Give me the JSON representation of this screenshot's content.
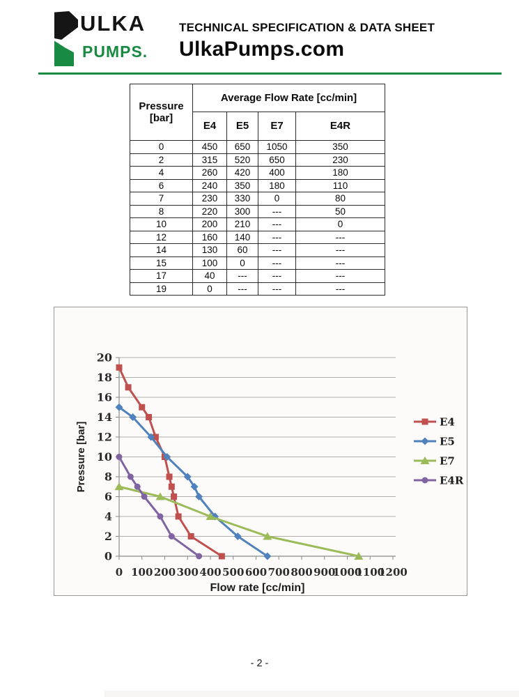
{
  "header": {
    "logo_word_top": "ULKA",
    "logo_word_bottom": "PUMPS.",
    "brand_green": "#188a42",
    "title_line1": "TECHNICAL SPECIFICATION & DATA SHEET",
    "title_line2": "UlkaPumps.com"
  },
  "spec_table": {
    "pressure_header_line1": "Pressure",
    "pressure_header_line2": "[bar]",
    "group_header": "Average Flow Rate [cc/min]",
    "series_headers": [
      "E4",
      "E5",
      "E7",
      "E4R"
    ],
    "rows": [
      [
        "0",
        "450",
        "650",
        "1050",
        "350"
      ],
      [
        "2",
        "315",
        "520",
        "650",
        "230"
      ],
      [
        "4",
        "260",
        "420",
        "400",
        "180"
      ],
      [
        "6",
        "240",
        "350",
        "180",
        "110"
      ],
      [
        "7",
        "230",
        "330",
        "0",
        "80"
      ],
      [
        "8",
        "220",
        "300",
        "---",
        "50"
      ],
      [
        "10",
        "200",
        "210",
        "---",
        "0"
      ],
      [
        "12",
        "160",
        "140",
        "---",
        "---"
      ],
      [
        "14",
        "130",
        "60",
        "---",
        "---"
      ],
      [
        "15",
        "100",
        "0",
        "---",
        "---"
      ],
      [
        "17",
        "40",
        "---",
        "---",
        "---"
      ],
      [
        "19",
        "0",
        "---",
        "---",
        "---"
      ]
    ]
  },
  "chart_data": {
    "type": "line",
    "title": "",
    "xlabel": "Flow rate [cc/min]",
    "ylabel": "Pressure [bar]",
    "xlim": [
      0,
      1200
    ],
    "ylim": [
      0,
      20
    ],
    "xticks": [
      0,
      100,
      200,
      300,
      400,
      500,
      600,
      700,
      800,
      900,
      1000,
      1100,
      1200
    ],
    "yticks": [
      0,
      2,
      4,
      6,
      8,
      10,
      12,
      14,
      16,
      18,
      20
    ],
    "grid": "horizontal",
    "legend_position": "right",
    "series": [
      {
        "name": "E4",
        "color": "#c0504d",
        "marker": "square",
        "points": [
          [
            0,
            19
          ],
          [
            40,
            17
          ],
          [
            100,
            15
          ],
          [
            130,
            14
          ],
          [
            160,
            12
          ],
          [
            200,
            10
          ],
          [
            220,
            8
          ],
          [
            230,
            7
          ],
          [
            240,
            6
          ],
          [
            260,
            4
          ],
          [
            315,
            2
          ],
          [
            450,
            0
          ]
        ]
      },
      {
        "name": "E5",
        "color": "#4f81bd",
        "marker": "diamond",
        "points": [
          [
            0,
            15
          ],
          [
            60,
            14
          ],
          [
            140,
            12
          ],
          [
            210,
            10
          ],
          [
            300,
            8
          ],
          [
            330,
            7
          ],
          [
            350,
            6
          ],
          [
            420,
            4
          ],
          [
            520,
            2
          ],
          [
            650,
            0
          ]
        ]
      },
      {
        "name": "E7",
        "color": "#9bbb59",
        "marker": "triangle",
        "points": [
          [
            0,
            7
          ],
          [
            180,
            6
          ],
          [
            400,
            4
          ],
          [
            650,
            2
          ],
          [
            1050,
            0
          ]
        ]
      },
      {
        "name": "E4R",
        "color": "#8064a2",
        "marker": "circle",
        "points": [
          [
            0,
            10
          ],
          [
            50,
            8
          ],
          [
            80,
            7
          ],
          [
            110,
            6
          ],
          [
            180,
            4
          ],
          [
            230,
            2
          ],
          [
            350,
            0
          ]
        ]
      }
    ]
  },
  "footer": {
    "page_number": "- 2 -"
  }
}
